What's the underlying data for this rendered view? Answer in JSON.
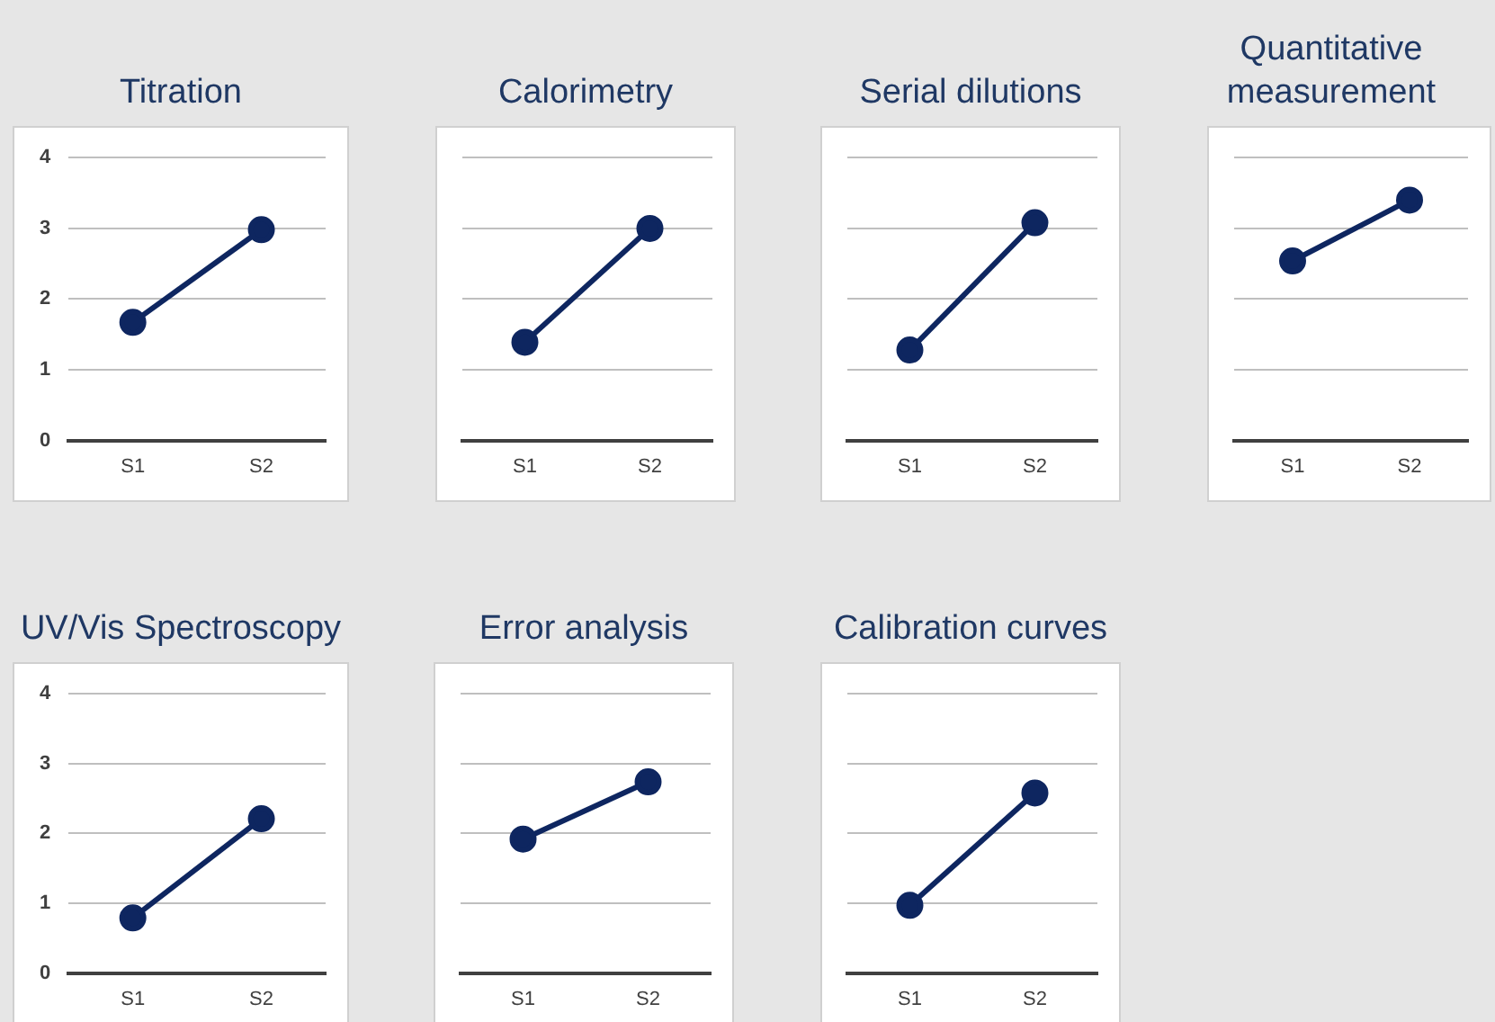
{
  "chart_data": [
    {
      "type": "line",
      "title": "Titration",
      "categories": [
        "S1",
        "S2"
      ],
      "series": [
        {
          "color": "#0e2660",
          "values": [
            1.67,
            2.98
          ]
        }
      ],
      "ylim": [
        0,
        4
      ],
      "yticks": [
        0,
        1,
        2,
        3,
        4
      ],
      "grid": "y",
      "marker": "circle"
    },
    {
      "type": "line",
      "title": "Calorimetry",
      "categories": [
        "S1",
        "S2"
      ],
      "series": [
        {
          "color": "#0e2660",
          "values": [
            1.39,
            3.0
          ]
        }
      ],
      "ylim": [
        0,
        4
      ],
      "yticks": [
        0,
        1,
        2,
        3,
        4
      ],
      "grid": "y",
      "marker": "circle",
      "tick_labels": "x"
    },
    {
      "type": "line",
      "title": "Serial dilutions",
      "categories": [
        "S1",
        "S2"
      ],
      "series": [
        {
          "color": "#0e2660",
          "values": [
            1.28,
            3.08
          ]
        }
      ],
      "ylim": [
        0,
        4
      ],
      "yticks": [
        0,
        1,
        2,
        3,
        4
      ],
      "grid": "y",
      "marker": "circle",
      "tick_labels": "x"
    },
    {
      "type": "line",
      "title": "Quantitative measurement",
      "categories": [
        "S1",
        "S2"
      ],
      "series": [
        {
          "color": "#0e2660",
          "values": [
            2.54,
            3.4
          ]
        }
      ],
      "ylim": [
        0,
        4
      ],
      "yticks": [
        0,
        1,
        2,
        3,
        4
      ],
      "grid": "y",
      "marker": "circle",
      "tick_labels": "x"
    },
    {
      "type": "line",
      "title": "UV/Vis Spectroscopy",
      "categories": [
        "S1",
        "S2"
      ],
      "series": [
        {
          "color": "#0e2660",
          "values": [
            0.79,
            2.21
          ]
        }
      ],
      "ylim": [
        0,
        4
      ],
      "yticks": [
        0,
        1,
        2,
        3,
        4
      ],
      "grid": "y",
      "marker": "circle"
    },
    {
      "type": "line",
      "title": "Error analysis",
      "categories": [
        "S1",
        "S2"
      ],
      "series": [
        {
          "color": "#0e2660",
          "values": [
            1.92,
            2.74
          ]
        }
      ],
      "ylim": [
        0,
        4
      ],
      "yticks": [
        0,
        1,
        2,
        3,
        4
      ],
      "grid": "y",
      "marker": "circle",
      "tick_labels": "x"
    },
    {
      "type": "line",
      "title": "Calibration curves",
      "categories": [
        "S1",
        "S2"
      ],
      "series": [
        {
          "color": "#0e2660",
          "values": [
            0.97,
            2.58
          ]
        }
      ],
      "ylim": [
        0,
        4
      ],
      "yticks": [
        0,
        1,
        2,
        3,
        4
      ],
      "grid": "y",
      "marker": "circle",
      "tick_labels": "x"
    }
  ]
}
